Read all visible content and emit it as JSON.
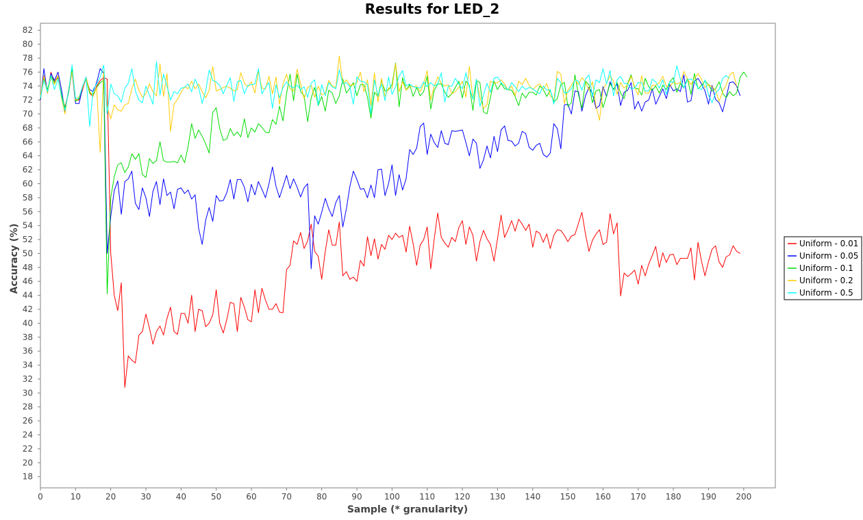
{
  "chart_data": {
    "type": "line",
    "title": "Results for LED_2",
    "xlabel": "Sample (* granularity)",
    "ylabel": "Accuracy (%)",
    "xlim": [
      0,
      209
    ],
    "ylim": [
      16.4,
      83
    ],
    "x_ticks": [
      0,
      10,
      20,
      30,
      40,
      50,
      60,
      70,
      80,
      90,
      100,
      110,
      120,
      130,
      140,
      150,
      160,
      170,
      180,
      190,
      200
    ],
    "y_ticks": [
      18,
      20,
      22,
      24,
      26,
      28,
      30,
      32,
      34,
      36,
      38,
      40,
      42,
      44,
      46,
      48,
      50,
      52,
      54,
      56,
      58,
      60,
      62,
      64,
      66,
      68,
      70,
      72,
      74,
      76,
      78,
      80,
      82
    ],
    "grid": false,
    "legend_position": "right",
    "series": [
      {
        "name": "Uniform - 0.01",
        "color": "#ff0000",
        "values": [
          72.0,
          75.5,
          73.0,
          76.0,
          74.5,
          75.5,
          72.5,
          71.0,
          73.0,
          76.2,
          72.0,
          72.0,
          73.5,
          75.3,
          73.0,
          72.5,
          74.0,
          74.8,
          75.2,
          75.0,
          50.0,
          44.0,
          41.8,
          45.8,
          30.8,
          35.3,
          34.7,
          34.3,
          38.3,
          38.8,
          41.3,
          39.3,
          37.0,
          38.8,
          39.6,
          38.3,
          40.7,
          42.3,
          38.8,
          38.4,
          41.4,
          41.4,
          40.0,
          44.0,
          38.8,
          42.0,
          41.8,
          39.5,
          40.0,
          41.2,
          44.8,
          40.0,
          38.6,
          40.5,
          43.0,
          42.8,
          38.8,
          43.7,
          42.3,
          40.5,
          40.2,
          44.8,
          41.5,
          45.0,
          43.3,
          42.0,
          42.0,
          42.8,
          41.6,
          41.5,
          47.7,
          48.3,
          51.8,
          51.3,
          53.0,
          50.7,
          51.8,
          54.2,
          50.3,
          49.6,
          46.3,
          50.3,
          53.4,
          51.2,
          51.2,
          54.5,
          46.8,
          47.4,
          46.3,
          46.6,
          46.0,
          49.0,
          48.2,
          52.4,
          49.7,
          52.1,
          49.2,
          51.3,
          50.6,
          52.6,
          52.0,
          52.9,
          52.3,
          52.6,
          50.2,
          53.9,
          51.4,
          48.3,
          51.2,
          52.0,
          53.8,
          47.8,
          52.1,
          55.8,
          52.3,
          51.5,
          50.9,
          52.3,
          51.7,
          53.7,
          54.7,
          51.3,
          53.8,
          52.6,
          48.9,
          51.7,
          53.3,
          52.1,
          51.3,
          48.9,
          52.1,
          55.5,
          52.3,
          53.4,
          54.7,
          53.2,
          54.9,
          54.2,
          53.3,
          54.2,
          50.9,
          53.2,
          52.9,
          51.6,
          52.8,
          50.7,
          52.6,
          53.4,
          53.3,
          52.6,
          51.7,
          52.5,
          52.7,
          54.3,
          55.9,
          52.8,
          50.3,
          51.9,
          52.8,
          53.4,
          51.3,
          51.6,
          55.7,
          52.8,
          54.4,
          43.9,
          47.2,
          46.7,
          47.1,
          47.6,
          45.6,
          48.3,
          46.8,
          48.5,
          49.7,
          51.0,
          48.0,
          50.1,
          48.7,
          49.8,
          49.9,
          48.4,
          49.3,
          49.3,
          49.3,
          50.8,
          46.2,
          51.6,
          48.9,
          46.8,
          48.9,
          50.6,
          51.1,
          48.8,
          48.0,
          49.5,
          49.8,
          51.1,
          50.3,
          50.0
        ]
      },
      {
        "name": "Uniform - 0.05",
        "color": "#0000ff",
        "values": [
          72.0,
          76.5,
          73.0,
          75.8,
          74.8,
          76.0,
          73.5,
          70.3,
          73.5,
          76.0,
          71.5,
          71.5,
          73.8,
          75.0,
          73.5,
          73.2,
          74.5,
          76.5,
          75.8,
          50.0,
          55.3,
          59.0,
          60.4,
          55.6,
          60.3,
          60.7,
          61.8,
          57.2,
          56.3,
          59.4,
          58.0,
          55.3,
          58.9,
          60.3,
          57.0,
          60.7,
          58.3,
          58.8,
          56.4,
          59.2,
          59.4,
          58.6,
          59.1,
          57.8,
          58.4,
          53.6,
          51.3,
          54.8,
          56.6,
          54.6,
          58.3,
          57.5,
          57.6,
          58.7,
          60.6,
          57.8,
          60.6,
          60.6,
          59.5,
          57.4,
          59.9,
          58.4,
          60.3,
          59.2,
          58.0,
          60.0,
          62.4,
          59.6,
          58.0,
          59.6,
          61.2,
          59.3,
          60.7,
          59.5,
          58.1,
          59.4,
          60.0,
          47.8,
          55.4,
          54.2,
          55.9,
          57.9,
          56.4,
          55.3,
          57.3,
          58.3,
          53.8,
          56.4,
          59.6,
          61.8,
          60.6,
          59.2,
          59.3,
          58.0,
          59.8,
          58.0,
          62.0,
          62.1,
          58.3,
          60.0,
          62.7,
          58.3,
          61.3,
          59.1,
          60.7,
          64.9,
          64.2,
          65.1,
          68.2,
          68.7,
          64.2,
          67.1,
          65.9,
          65.2,
          67.6,
          65.8,
          65.6,
          67.6,
          67.5,
          67.6,
          67.7,
          65.9,
          64.0,
          66.4,
          65.8,
          62.2,
          63.4,
          65.4,
          63.7,
          66.8,
          64.6,
          67.7,
          68.3,
          66.2,
          66.1,
          65.4,
          65.8,
          67.5,
          67.2,
          65.2,
          64.8,
          65.5,
          65.8,
          64.2,
          63.8,
          64.4,
          68.6,
          67.9,
          65.0,
          71.3,
          71.4,
          70.0,
          73.3,
          73.2,
          70.4,
          72.6,
          73.8,
          72.9,
          70.8,
          71.2,
          73.9,
          72.5,
          74.6,
          73.5,
          74.3,
          71.2,
          73.1,
          73.4,
          74.5,
          70.7,
          71.8,
          70.4,
          71.7,
          72.0,
          73.6,
          71.4,
          72.5,
          73.6,
          72.2,
          74.2,
          73.3,
          73.6,
          73.2,
          75.6,
          71.7,
          71.9,
          74.7,
          75.1,
          74.3,
          73.3,
          71.4,
          74.1,
          72.1,
          71.6,
          70.3,
          72.3,
          74.5,
          74.6,
          74.0,
          72.6
        ]
      },
      {
        "name": "Uniform - 0.1",
        "color": "#00dd00",
        "values": [
          72.2,
          75.0,
          73.5,
          75.5,
          74.5,
          75.2,
          72.8,
          70.8,
          73.0,
          76.5,
          71.8,
          72.2,
          74.0,
          75.0,
          73.0,
          72.8,
          73.8,
          74.5,
          74.8,
          44.2,
          58.0,
          61.0,
          62.7,
          63.0,
          61.6,
          62.4,
          64.3,
          63.5,
          64.3,
          61.3,
          60.9,
          63.6,
          62.9,
          63.3,
          66.0,
          63.3,
          63.1,
          63.1,
          63.2,
          63.0,
          64.1,
          63.0,
          65.3,
          68.6,
          66.5,
          67.7,
          66.8,
          65.7,
          64.4,
          70.2,
          70.9,
          67.9,
          66.2,
          66.4,
          67.9,
          66.9,
          67.4,
          66.7,
          69.3,
          66.6,
          68.0,
          67.4,
          68.6,
          68.1,
          67.4,
          67.3,
          69.2,
          68.5,
          71.1,
          69.0,
          72.9,
          75.7,
          71.9,
          75.7,
          73.2,
          72.6,
          68.9,
          72.3,
          73.8,
          71.2,
          72.5,
          70.4,
          73.4,
          73.0,
          71.5,
          72.6,
          75.0,
          73.0,
          73.7,
          74.5,
          72.6,
          74.2,
          74.2,
          72.4,
          69.4,
          73.1,
          72.5,
          74.8,
          73.3,
          73.5,
          74.2,
          77.3,
          71.0,
          75.2,
          73.4,
          74.2,
          72.5,
          73.8,
          72.6,
          73.2,
          75.4,
          70.7,
          73.4,
          74.3,
          74.3,
          73.1,
          72.4,
          72.9,
          73.8,
          74.7,
          72.3,
          74.7,
          74.1,
          70.5,
          74.8,
          74.5,
          70.3,
          70.0,
          72.4,
          74.7,
          73.5,
          74.4,
          73.6,
          73.5,
          73.4,
          72.5,
          71.2,
          73.0,
          72.3,
          73.1,
          73.1,
          72.7,
          74.0,
          73.5,
          72.5,
          73.4,
          71.7,
          72.2,
          74.2,
          74.5,
          71.1,
          71.6,
          75.6,
          72.8,
          70.8,
          74.7,
          74.2,
          71.6,
          73.3,
          73.5,
          70.9,
          72.6,
          74.4,
          73.5,
          74.5,
          73.0,
          72.2,
          74.4,
          75.6,
          73.7,
          73.6,
          72.7,
          75.1,
          73.9,
          73.4,
          74.0,
          73.0,
          74.1,
          73.5,
          74.6,
          75.2,
          73.1,
          74.4,
          73.7,
          75.1,
          72.8,
          75.8,
          73.6,
          74.1,
          74.7,
          74.2,
          73.3,
          73.6,
          74.6,
          73.0,
          72.3,
          73.2,
          72.6,
          73.0,
          75.3,
          76.0,
          75.3
        ]
      },
      {
        "name": "Uniform - 0.2",
        "color": "#ffcc00",
        "values": [
          72.5,
          75.5,
          73.0,
          75.2,
          74.2,
          75.5,
          72.2,
          70.0,
          73.5,
          76.0,
          72.0,
          72.5,
          73.8,
          75.2,
          73.3,
          72.5,
          73.8,
          64.5,
          76.2,
          71.0,
          69.3,
          71.3,
          70.6,
          70.4,
          71.3,
          71.5,
          73.6,
          75.0,
          73.4,
          72.4,
          72.9,
          74.3,
          73.2,
          72.6,
          77.2,
          72.5,
          75.8,
          67.5,
          71.4,
          72.1,
          73.1,
          73.9,
          73.6,
          74.7,
          73.6,
          74.3,
          73.2,
          72.3,
          73.4,
          76.8,
          73.3,
          73.5,
          73.8,
          74.0,
          73.7,
          73.3,
          73.5,
          75.9,
          74.4,
          73.9,
          74.6,
          73.0,
          76.1,
          73.7,
          73.6,
          75.4,
          72.9,
          75.3,
          71.4,
          74.3,
          75.7,
          73.6,
          73.3,
          76.4,
          74.3,
          72.2,
          73.8,
          74.1,
          72.4,
          74.0,
          72.7,
          73.0,
          74.8,
          74.0,
          73.8,
          78.3,
          74.3,
          74.9,
          74.1,
          74.2,
          74.5,
          76.0,
          73.2,
          74.9,
          71.2,
          75.9,
          71.7,
          75.1,
          72.5,
          73.7,
          73.7,
          77.2,
          73.2,
          74.6,
          73.4,
          73.9,
          73.9,
          74.0,
          73.2,
          74.3,
          76.2,
          72.0,
          74.0,
          75.3,
          74.4,
          74.0,
          74.2,
          72.9,
          73.2,
          73.8,
          74.7,
          72.4,
          76.8,
          72.2,
          75.0,
          72.4,
          70.8,
          71.3,
          74.7,
          74.4,
          74.5,
          74.9,
          74.3,
          73.4,
          74.0,
          72.6,
          74.7,
          74.2,
          75.1,
          74.1,
          73.5,
          74.0,
          74.3,
          73.5,
          74.4,
          72.6,
          72.0,
          76.1,
          75.7,
          71.5,
          73.4,
          74.1,
          75.0,
          74.2,
          75.2,
          74.6,
          73.4,
          74.6,
          71.1,
          69.1,
          73.6,
          74.4,
          75.5,
          74.7,
          72.8,
          74.5,
          73.7,
          74.2,
          75.4,
          73.9,
          72.7,
          75.5,
          73.0,
          73.0,
          74.1,
          74.1,
          74.5,
          75.4,
          74.0,
          73.9,
          74.6,
          74.3,
          74.5,
          76.1,
          75.0,
          74.2,
          75.1,
          75.8,
          75.0,
          73.8,
          74.2,
          73.9,
          73.4,
          71.8,
          73.2,
          74.1,
          75.6,
          76.0,
          74.0
        ]
      },
      {
        "name": "Uniform - 0.5",
        "color": "#00ffff",
        "values": [
          72.3,
          74.8,
          73.2,
          75.5,
          73.5,
          75.0,
          72.5,
          70.5,
          73.2,
          77.0,
          72.2,
          72.3,
          74.0,
          75.3,
          68.2,
          73.5,
          74.3,
          75.3,
          77.0,
          70.0,
          74.3,
          72.9,
          72.6,
          71.7,
          73.7,
          74.4,
          76.5,
          73.3,
          72.0,
          71.6,
          74.0,
          72.7,
          71.4,
          77.5,
          72.7,
          75.7,
          74.0,
          72.0,
          73.2,
          72.9,
          73.7,
          73.8,
          74.3,
          73.2,
          75.0,
          73.8,
          71.5,
          73.3,
          76.3,
          74.8,
          74.6,
          74.1,
          72.9,
          74.1,
          75.2,
          71.8,
          74.6,
          74.8,
          72.9,
          74.1,
          74.2,
          74.3,
          76.5,
          72.9,
          73.8,
          74.5,
          70.8,
          74.2,
          72.3,
          73.8,
          74.6,
          74.0,
          73.8,
          74.1,
          73.5,
          73.9,
          72.4,
          74.4,
          74.9,
          71.3,
          74.2,
          72.6,
          74.5,
          73.9,
          73.6,
          76.3,
          74.3,
          74.5,
          73.9,
          71.4,
          75.3,
          74.7,
          74.6,
          74.2,
          70.0,
          74.9,
          72.6,
          74.3,
          71.9,
          75.3,
          72.8,
          73.9,
          75.4,
          76.2,
          74.0,
          74.3,
          73.9,
          73.8,
          73.7,
          74.6,
          73.9,
          74.5,
          74.0,
          74.3,
          75.9,
          71.7,
          74.0,
          74.0,
          75.1,
          74.3,
          73.6,
          75.9,
          73.8,
          72.1,
          75.0,
          71.1,
          72.7,
          74.4,
          73.1,
          75.1,
          75.3,
          74.5,
          74.0,
          73.4,
          74.5,
          73.9,
          73.2,
          74.0,
          73.5,
          73.8,
          73.6,
          73.2,
          72.9,
          74.0,
          73.4,
          73.5,
          71.4,
          75.1,
          74.5,
          73.0,
          73.1,
          73.6,
          74.9,
          74.7,
          73.4,
          75.0,
          75.6,
          72.5,
          74.9,
          74.5,
          76.5,
          74.3,
          76.2,
          72.6,
          74.9,
          75.4,
          74.4,
          74.3,
          73.6,
          73.7,
          74.5,
          74.5,
          73.3,
          73.3,
          75.0,
          74.6,
          73.7,
          74.9,
          72.8,
          74.6,
          74.5,
          76.9,
          75.0,
          73.7,
          74.9,
          75.0,
          74.7,
          73.7,
          73.5,
          74.9,
          72.7,
          71.6,
          73.0,
          73.5,
          75.1,
          75.5,
          75.1
        ]
      }
    ]
  }
}
